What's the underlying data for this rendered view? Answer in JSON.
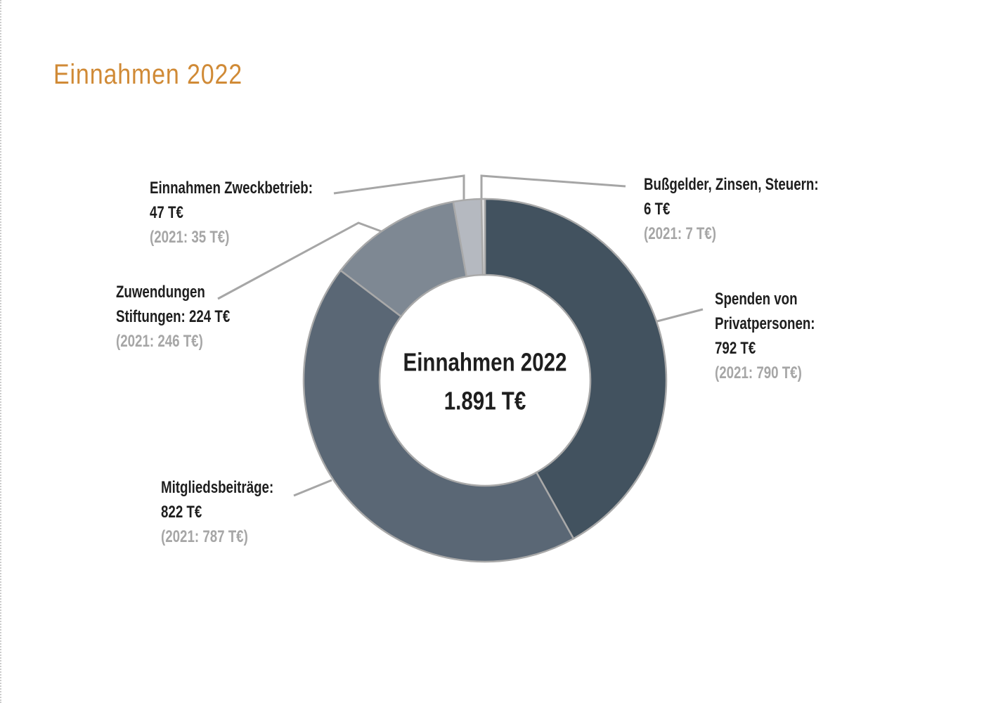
{
  "chart_data": {
    "type": "donut",
    "title": "Einnahmen 2022",
    "center_title": "Einnahmen 2022",
    "center_value": "1.891 T€",
    "categories": [
      "Spenden von Privatpersonen:",
      "Mitgliedsbeiträge:",
      "Zuwendungen Stiftungen:",
      "Einnahmen Zweckbetrieb:",
      "Bußgelder, Zinsen, Steuern:"
    ],
    "values": [
      792,
      822,
      224,
      47,
      6
    ],
    "value_labels": [
      "792 T€",
      "822 T€",
      "224 T€",
      "47 T€",
      "6 T€"
    ],
    "previous_labels": [
      "(2021: 790 T€)",
      "(2021: 787 T€)",
      "(2021: 246 T€)",
      "(2021: 35 T€)",
      "(2021: 7 T€)"
    ],
    "colors": [
      "#42525f",
      "#5a6775",
      "#7e8893",
      "#b5b9c0",
      "#e3e3e3"
    ]
  }
}
